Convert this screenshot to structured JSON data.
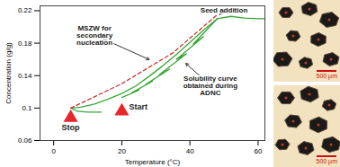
{
  "chart_data": {
    "type": "line",
    "x_label": "Temperature (°C)",
    "y_label": "Concentration (g/g)",
    "xlim": [
      -4,
      62
    ],
    "xticks": [
      0,
      20,
      40,
      60
    ],
    "ylim": [
      0.06,
      0.226
    ],
    "yticks": [
      0.06,
      0.1,
      0.14,
      0.18,
      0.22
    ],
    "grid": false,
    "series": [
      {
        "color": "#3aa637",
        "line_style": "solid",
        "x": [
          20,
          25,
          23,
          29,
          27,
          34,
          31,
          39,
          36,
          44,
          41,
          48,
          52,
          56,
          60,
          62
        ],
        "values": [
          0.113,
          0.122,
          0.119,
          0.133,
          0.129,
          0.148,
          0.141,
          0.167,
          0.16,
          0.188,
          0.179,
          0.21,
          0.213,
          0.211,
          0.21,
          0.21
        ]
      },
      {
        "color": "#3aa637",
        "line_style": "solid",
        "x": [
          48,
          44,
          40,
          36,
          32,
          28,
          24,
          20,
          16,
          12,
          8,
          5,
          7,
          10,
          14
        ],
        "values": [
          0.21,
          0.196,
          0.181,
          0.166,
          0.152,
          0.139,
          0.127,
          0.118,
          0.111,
          0.105,
          0.101,
          0.1,
          0.096,
          0.095,
          0.095
        ]
      },
      {
        "color": "#d0312d",
        "line_style": "dashed",
        "x": [
          5,
          20,
          35,
          48
        ],
        "values": [
          0.1,
          0.13,
          0.168,
          0.215
        ]
      }
    ],
    "markers": [
      {
        "label": "Start",
        "x": 20,
        "y": 0.096,
        "color": "#e8262b",
        "marker": "triangle"
      },
      {
        "label": "Stop",
        "x": 5,
        "y": 0.088,
        "color": "#e8262b",
        "marker": "triangle"
      }
    ],
    "annotations": [
      {
        "text": "Seed addition",
        "x": 50,
        "y": 0.221,
        "arrow_to": [
          48,
          0.212
        ]
      },
      {
        "text": "MSZW for secondary nucleation",
        "x": 12,
        "y": 0.19,
        "arrow_to": [
          29,
          0.158
        ]
      },
      {
        "text": "Solubility curve obtained during ADNC",
        "x": 46,
        "y": 0.128,
        "arrow_to": [
          38,
          0.158
        ]
      }
    ]
  },
  "micrographs": [
    {
      "scale_bar": "500 µm"
    },
    {
      "scale_bar": "500 µm"
    }
  ]
}
